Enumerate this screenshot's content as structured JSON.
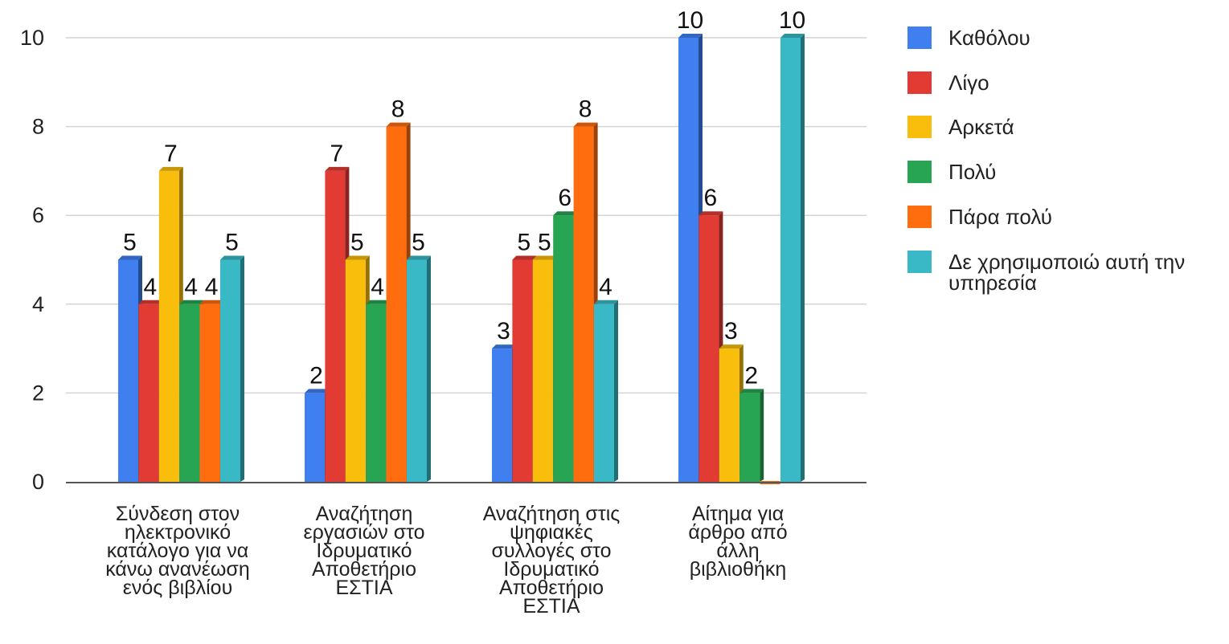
{
  "chart_data": {
    "type": "bar",
    "categories": [
      [
        "Σύνδεση στον",
        "ηλεκτρονικό",
        "κατάλογο για να",
        "κάνω ανανέωση",
        "ενός βιβλίου"
      ],
      [
        "Αναζήτηση",
        "εργασιών στο",
        "Ιδρυματικό",
        "Αποθετήριο",
        "ΕΣΤΙΑ"
      ],
      [
        "Αναζήτηση στις",
        "ψηφιακές",
        "συλλογές στο",
        "Ιδρυματικό",
        "Αποθετήριο",
        "ΕΣΤΙΑ"
      ],
      [
        "Αίτημα για",
        "άρθρο από",
        "άλλη",
        "βιβλιοθήκη"
      ]
    ],
    "series": [
      {
        "name": "Καθόλου",
        "color": "#3f7ff0",
        "values": [
          5,
          2,
          3,
          10
        ]
      },
      {
        "name": "Λίγο",
        "color": "#e23b33",
        "values": [
          4,
          7,
          5,
          6
        ]
      },
      {
        "name": "Αρκετά",
        "color": "#f9bd0b",
        "values": [
          7,
          5,
          5,
          3
        ]
      },
      {
        "name": "Πολύ",
        "color": "#27a552",
        "values": [
          4,
          4,
          6,
          2
        ]
      },
      {
        "name": "Πάρα πολύ",
        "color": "#ff6d0f",
        "values": [
          4,
          8,
          8,
          0
        ]
      },
      {
        "name": "Δε χρησιμοποιώ αυτή την υπηρεσία",
        "color": "#39b8c5",
        "values": [
          5,
          5,
          4,
          10
        ]
      }
    ],
    "legend_lines": [
      [
        "Καθόλου"
      ],
      [
        "Λίγο"
      ],
      [
        "Αρκετά"
      ],
      [
        "Πολύ"
      ],
      [
        "Πάρα πολύ"
      ],
      [
        "Δε χρησιμοποιώ αυτή την",
        "υπηρεσία"
      ]
    ],
    "yticks": [
      "0",
      "2",
      "4",
      "6",
      "8",
      "10"
    ],
    "ylim": [
      0,
      10
    ],
    "grid": true,
    "legend_position": "right",
    "show_data_labels": true
  }
}
